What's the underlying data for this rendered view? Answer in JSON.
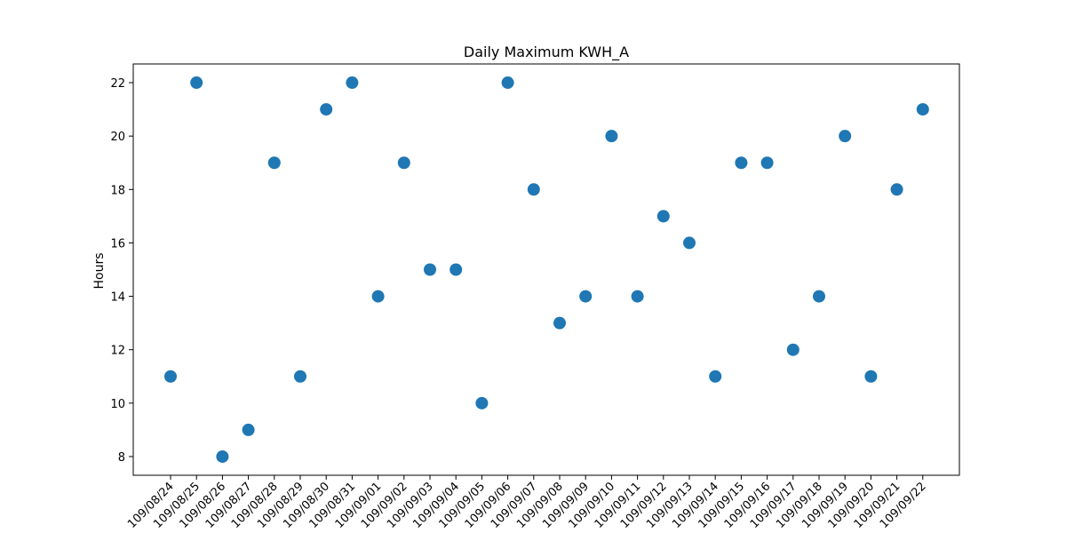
{
  "chart_data": {
    "type": "scatter",
    "title": "Daily Maximum KWH_A",
    "xlabel": "",
    "ylabel": "Hours",
    "categories": [
      "109/08/24",
      "109/08/25",
      "109/08/26",
      "109/08/27",
      "109/08/28",
      "109/08/29",
      "109/08/30",
      "109/08/31",
      "109/09/01",
      "109/09/02",
      "109/09/03",
      "109/09/04",
      "109/09/05",
      "109/09/06",
      "109/09/07",
      "109/09/08",
      "109/09/09",
      "109/09/10",
      "109/09/11",
      "109/09/12",
      "109/09/13",
      "109/09/14",
      "109/09/15",
      "109/09/16",
      "109/09/17",
      "109/09/18",
      "109/09/19",
      "109/09/20",
      "109/09/21",
      "109/09/22"
    ],
    "values": [
      11,
      22,
      8,
      9,
      19,
      11,
      21,
      22,
      14,
      19,
      15,
      15,
      10,
      22,
      18,
      13,
      14,
      20,
      14,
      17,
      16,
      11,
      19,
      19,
      12,
      14,
      20,
      11,
      18,
      21
    ],
    "yticks": [
      8,
      10,
      12,
      14,
      16,
      18,
      20,
      22
    ],
    "ylim": [
      7.3,
      22.7
    ],
    "grid": false,
    "marker_color": "#1f77b4"
  }
}
